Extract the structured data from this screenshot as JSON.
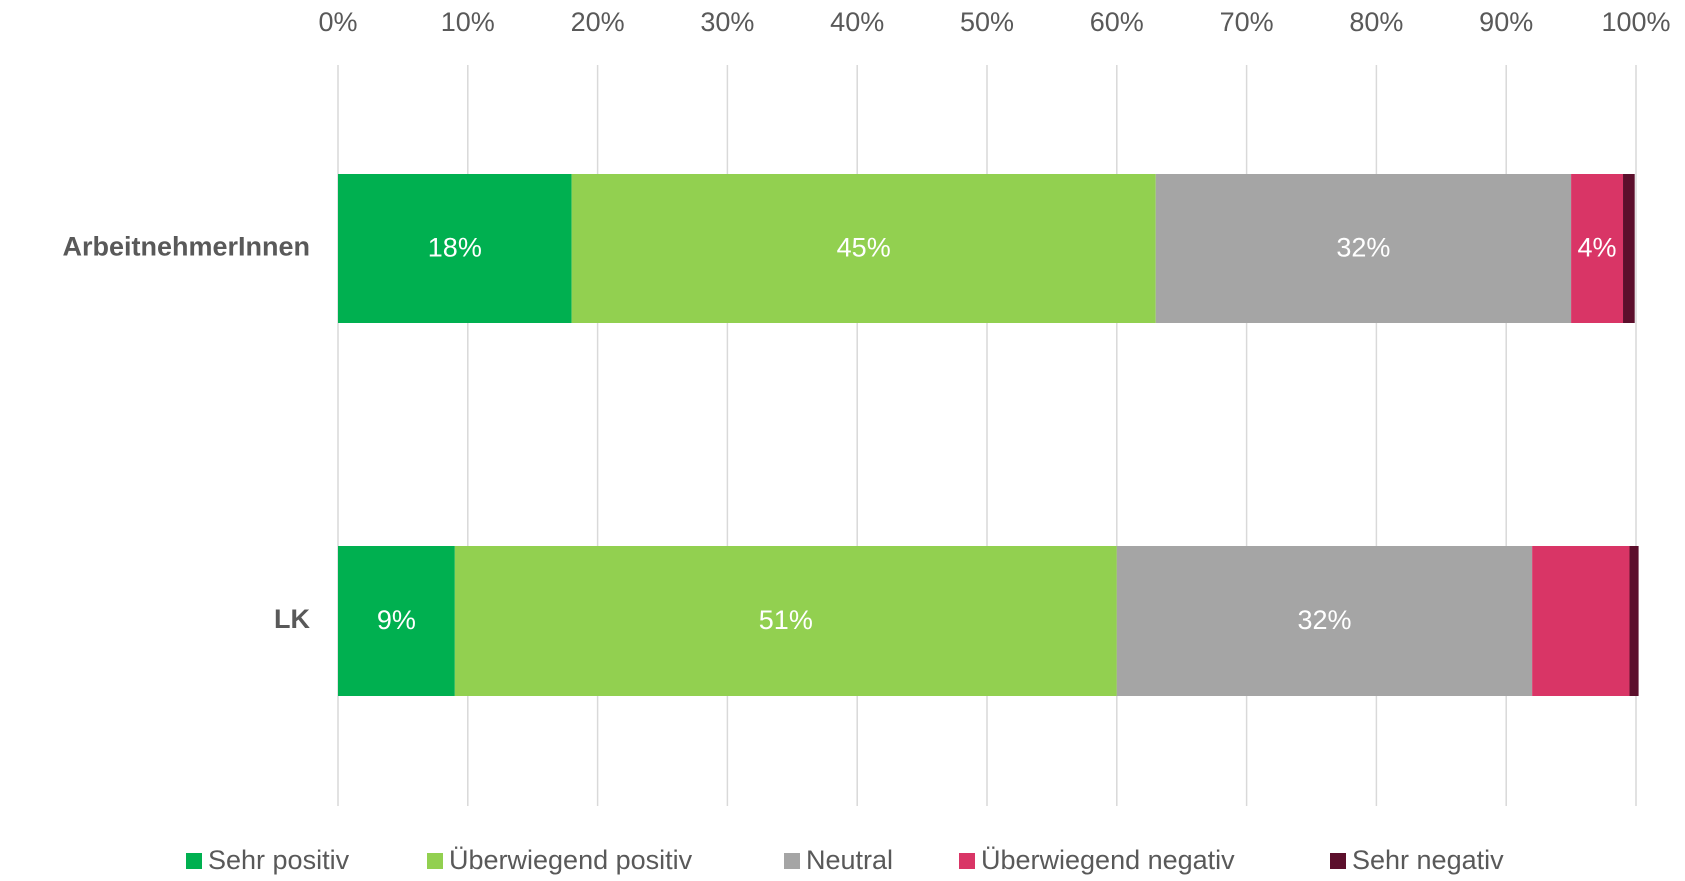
{
  "chart_data": {
    "type": "stacked_barh",
    "categories": [
      "ArbeitnehmerInnen",
      "LK"
    ],
    "series": [
      {
        "name": "Sehr positiv",
        "color": "#00b050",
        "values": [
          18,
          9
        ],
        "value_labels": [
          "18%",
          "9%"
        ]
      },
      {
        "name": "Überwiegend positiv",
        "color": "#92d050",
        "values": [
          45,
          51
        ],
        "value_labels": [
          "45%",
          "51%"
        ]
      },
      {
        "name": "Neutral",
        "color": "#a5a5a5",
        "values": [
          32,
          32
        ],
        "value_labels": [
          "32%",
          "32%"
        ]
      },
      {
        "name": "Überwiegend negativ",
        "color": "#d93566",
        "values": [
          4,
          7.5
        ],
        "value_labels": [
          "4%",
          null
        ]
      },
      {
        "name": "Sehr negativ",
        "color": "#5c0f2c",
        "values": [
          0.9,
          0.7
        ],
        "value_labels": [
          null,
          null
        ]
      }
    ],
    "xlim": [
      0,
      100
    ],
    "xticks": [
      {
        "value": 0,
        "label": "0%"
      },
      {
        "value": 10,
        "label": "10%"
      },
      {
        "value": 20,
        "label": "20%"
      },
      {
        "value": 30,
        "label": "30%"
      },
      {
        "value": 40,
        "label": "40%"
      },
      {
        "value": 50,
        "label": "50%"
      },
      {
        "value": 60,
        "label": "60%"
      },
      {
        "value": 70,
        "label": "70%"
      },
      {
        "value": 80,
        "label": "80%"
      },
      {
        "value": 90,
        "label": "90%"
      },
      {
        "value": 100,
        "label": "100%"
      }
    ],
    "grid": true,
    "legend": "bottom"
  }
}
